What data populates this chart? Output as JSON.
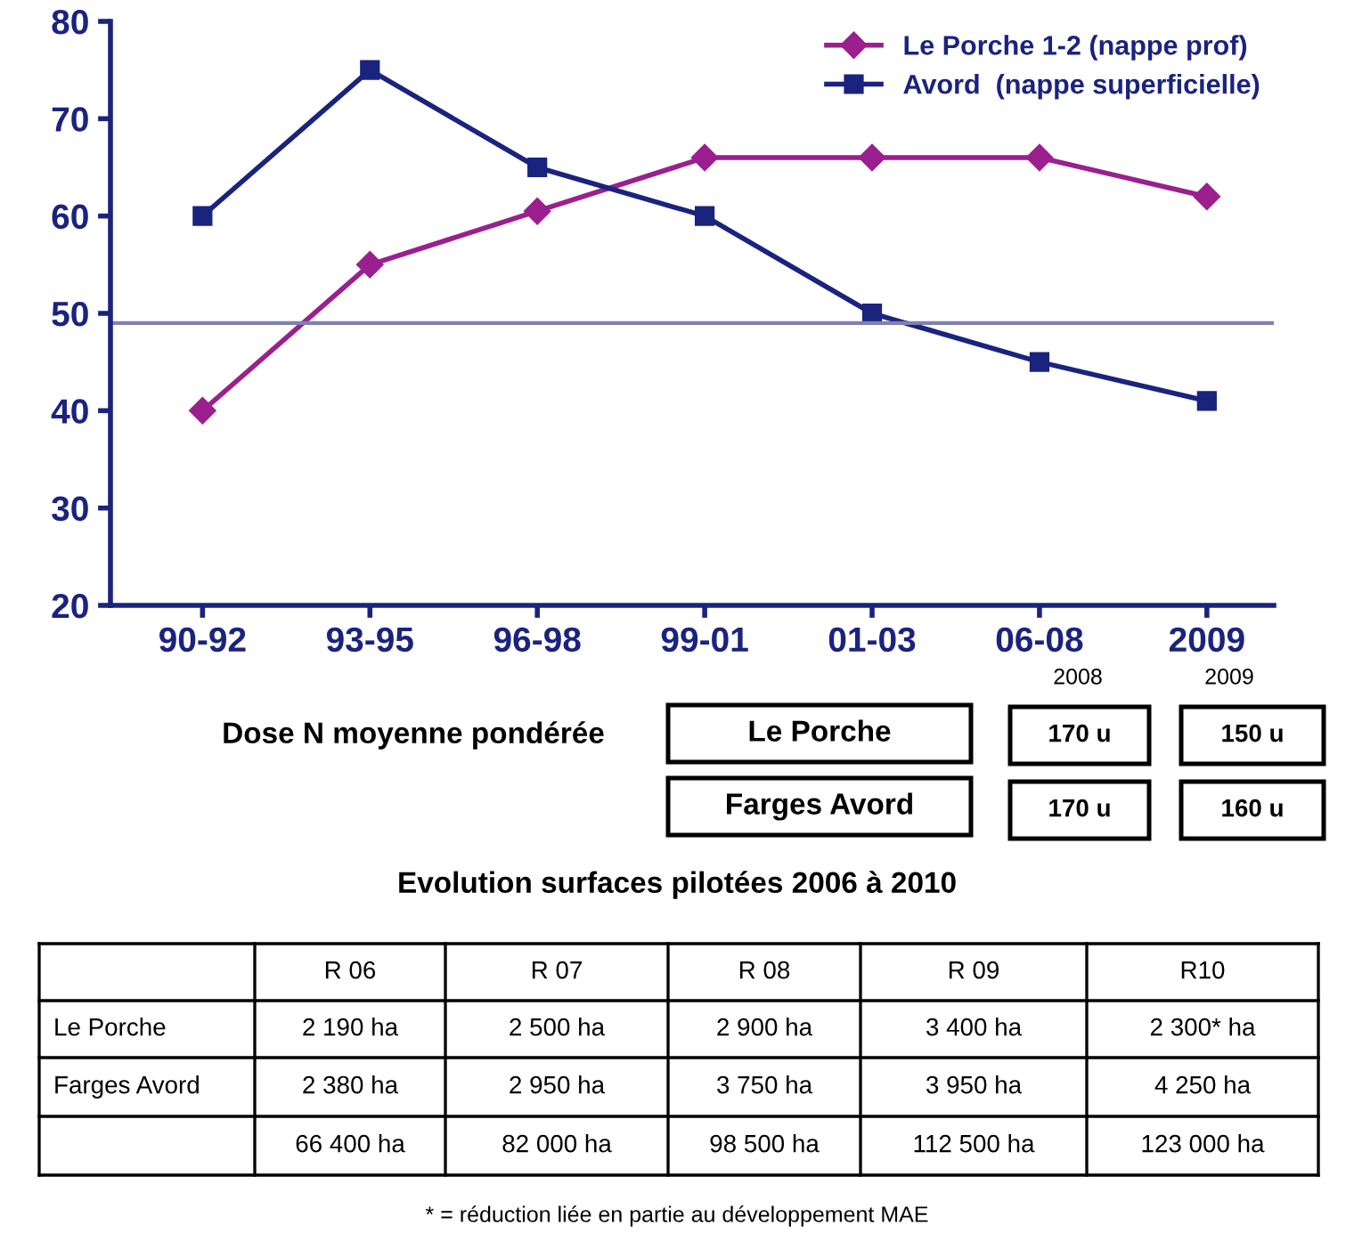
{
  "chart_data": {
    "type": "line",
    "categories": [
      "90-92",
      "93-95",
      "96-98",
      "99-01",
      "01-03",
      "06-08",
      "2009"
    ],
    "series": [
      {
        "name": "Le Porche 1-2 (nappe prof)",
        "color": "#9b1f8f",
        "marker": "diamond",
        "values": [
          40,
          55,
          60.5,
          66,
          66,
          66,
          62
        ]
      },
      {
        "name": "Avord  (nappe superficielle)",
        "color": "#1a237e",
        "marker": "square",
        "values": [
          60,
          75,
          65,
          60,
          50,
          45,
          41
        ]
      }
    ],
    "ylim": [
      20,
      80
    ],
    "yticks": [
      20,
      30,
      40,
      50,
      60,
      70,
      80
    ],
    "ref_lines": [
      {
        "axis": "y",
        "value": 49,
        "color": "#8080b0"
      }
    ],
    "legend": "top right",
    "grid": false,
    "annotations": [
      "Dose N moyenne pondérée",
      "Le Porche",
      "Farges Avord",
      "2008",
      "2009",
      "170 u",
      "150 u",
      "170 u",
      "160 u",
      "Evolution surfaces pilotées 2006 à 2010",
      "R 06",
      "R 07",
      "R 08",
      "R 09",
      "R10",
      "Le Porche",
      "2 190 ha",
      "2 500 ha",
      "2 900 ha",
      "3 400 ha",
      "2 300* ha",
      "Farges Avord",
      "2 380 ha",
      "2 950 ha",
      "3 750 ha",
      "3 950 ha",
      "4 250 ha",
      "66 400 ha",
      "82 000 ha",
      "98 500 ha",
      "112 500 ha",
      "123 000 ha",
      "* = réduction liée en partie au développement MAE"
    ]
  }
}
